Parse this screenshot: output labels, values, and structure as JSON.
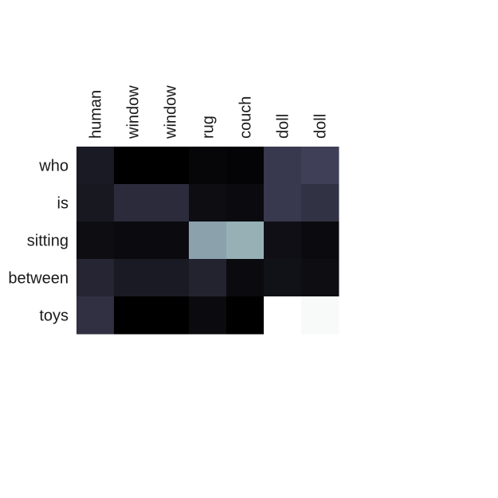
{
  "chart_data": {
    "type": "heatmap",
    "title": "",
    "xlabel": "",
    "ylabel": "",
    "x_labels": [
      "human",
      "window",
      "window",
      "rug",
      "couch",
      "doll",
      "doll"
    ],
    "y_labels": [
      "who",
      "is",
      "sitting",
      "between",
      "toys"
    ],
    "values": [
      [
        0.12,
        0.0,
        0.0,
        0.03,
        0.02,
        0.26,
        0.29
      ],
      [
        0.11,
        0.2,
        0.2,
        0.06,
        0.05,
        0.26,
        0.23
      ],
      [
        0.06,
        0.05,
        0.05,
        0.63,
        0.68,
        0.07,
        0.05
      ],
      [
        0.17,
        0.12,
        0.12,
        0.16,
        0.05,
        0.08,
        0.06
      ],
      [
        0.22,
        0.0,
        0.0,
        0.05,
        0.0,
        1.0,
        0.98
      ]
    ],
    "colormap": "bone",
    "colorbar": false,
    "grid": false
  }
}
